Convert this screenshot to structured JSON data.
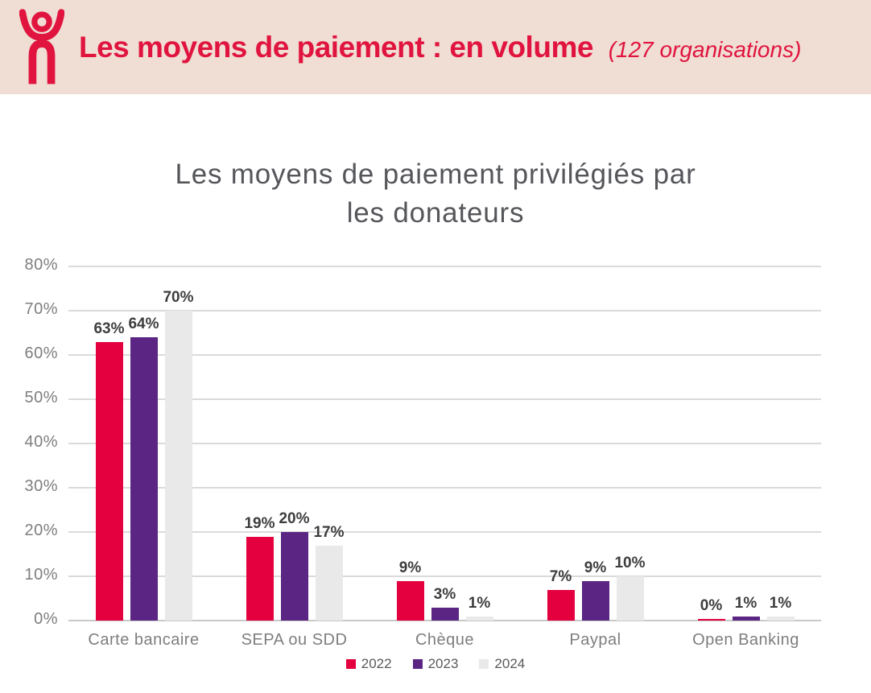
{
  "header": {
    "title": "Les moyens de paiement : en volume",
    "subtitle": "(127 organisations)",
    "logo_icon": "person-raised-arms-icon",
    "background": "#f0ddd3",
    "accent": "#e0143e"
  },
  "chart_data": {
    "type": "bar",
    "title": "Les moyens de paiement privilégiés par les donateurs",
    "title_lines": [
      "Les moyens de paiement privilégiés par",
      "les donateurs"
    ],
    "categories": [
      "Carte bancaire",
      "SEPA ou SDD",
      "Chèque",
      "Paypal",
      "Open Banking"
    ],
    "series": [
      {
        "name": "2022",
        "color": "#e4003e",
        "values": [
          63,
          19,
          9,
          7,
          0
        ],
        "labels": [
          "63%",
          "19%",
          "9%",
          "7%",
          "0%"
        ]
      },
      {
        "name": "2023",
        "color": "#5a2583",
        "values": [
          64,
          20,
          3,
          9,
          1
        ],
        "labels": [
          "64%",
          "20%",
          "3%",
          "9%",
          "1%"
        ]
      },
      {
        "name": "2024",
        "color": "#e9e9e9",
        "values": [
          70,
          17,
          1,
          10,
          1
        ],
        "labels": [
          "70%",
          "17%",
          "1%",
          "10%",
          "1%"
        ]
      }
    ],
    "y_axis": {
      "min": 0,
      "max": 80,
      "step": 10,
      "tick_labels": [
        "0%",
        "10%",
        "20%",
        "30%",
        "40%",
        "50%",
        "60%",
        "70%",
        "80%"
      ]
    },
    "grid": true,
    "legend_position": "bottom",
    "colors": {
      "grid": "#dadada",
      "axis_text": "#7e7e7e",
      "value_label": "#3d3d3d",
      "title": "#55565a"
    }
  }
}
